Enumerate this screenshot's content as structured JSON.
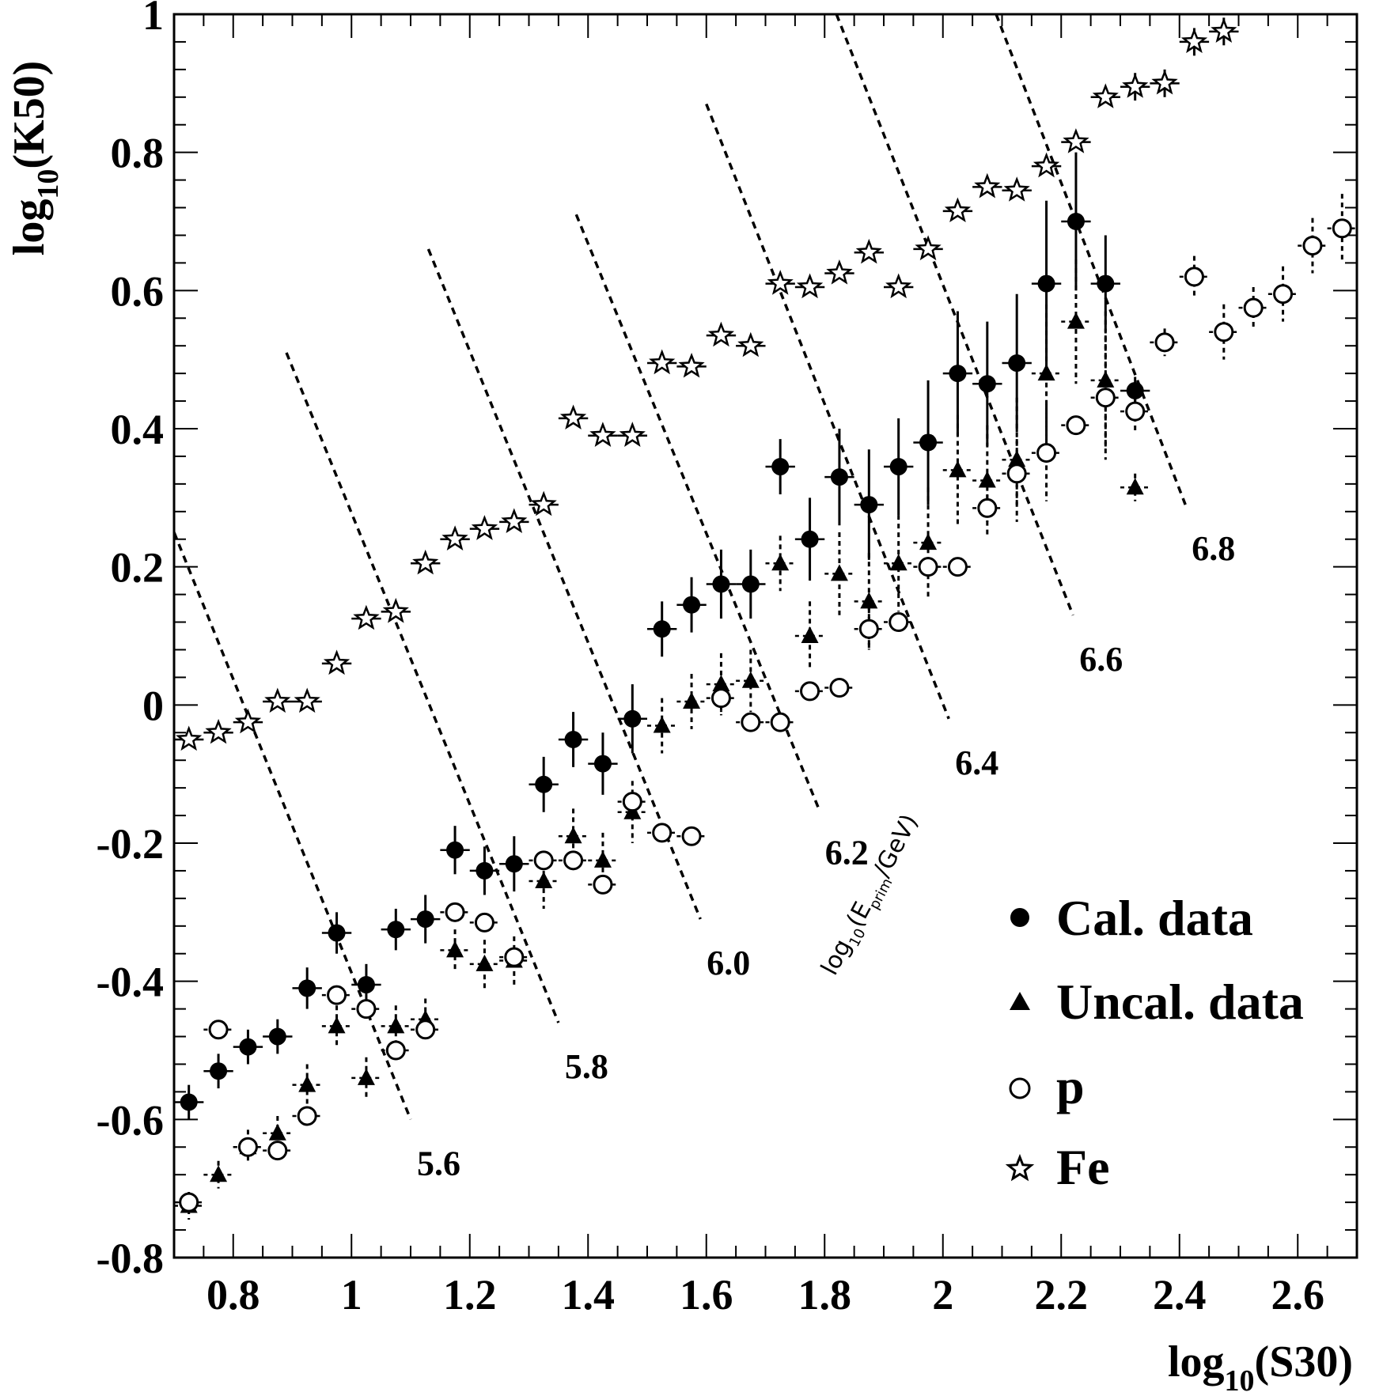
{
  "chart_data": {
    "type": "scatter",
    "xlabel": {
      "base": "log",
      "sub": "10",
      "rest": "(S30)"
    },
    "ylabel": {
      "base": "log",
      "sub": "10",
      "rest": "(K50)"
    },
    "xlim": [
      0.7,
      2.7
    ],
    "ylim": [
      -0.8,
      1.0
    ],
    "xticks": [
      0.8,
      1.0,
      1.2,
      1.4,
      1.6,
      1.8,
      2.0,
      2.2,
      2.4,
      2.6
    ],
    "xtick_labels": [
      "0.8",
      "1",
      "1.2",
      "1.4",
      "1.6",
      "1.8",
      "2",
      "2.2",
      "2.4",
      "2.6"
    ],
    "yticks": [
      -0.8,
      -0.6,
      -0.4,
      -0.2,
      0,
      0.2,
      0.4,
      0.6,
      0.8,
      1.0
    ],
    "ytick_labels": [
      "-0.8",
      "-0.6",
      "-0.4",
      "-0.2",
      "0",
      "0.2",
      "0.4",
      "0.6",
      "0.8",
      "1"
    ],
    "grid": false,
    "legend_position": "bottom-right",
    "series": [
      {
        "name": "Cal. data",
        "marker": "filled-circle",
        "x": [
          0.725,
          0.775,
          0.825,
          0.875,
          0.925,
          0.975,
          1.025,
          1.075,
          1.125,
          1.175,
          1.225,
          1.275,
          1.325,
          1.375,
          1.425,
          1.475,
          1.525,
          1.575,
          1.625,
          1.675,
          1.725,
          1.775,
          1.825,
          1.875,
          1.925,
          1.975,
          2.025,
          2.075,
          2.125,
          2.175,
          2.225,
          2.275,
          2.325
        ],
        "y": [
          -0.575,
          -0.53,
          -0.495,
          -0.48,
          -0.41,
          -0.33,
          -0.405,
          -0.325,
          -0.31,
          -0.21,
          -0.24,
          -0.23,
          -0.115,
          -0.05,
          -0.085,
          -0.02,
          0.11,
          0.145,
          0.175,
          0.175,
          0.345,
          0.24,
          0.33,
          0.29,
          0.345,
          0.38,
          0.48,
          0.465,
          0.495,
          0.61,
          0.7,
          0.61,
          0.455
        ],
        "yerr": [
          0.025,
          0.025,
          0.025,
          0.025,
          0.03,
          0.03,
          0.03,
          0.03,
          0.035,
          0.035,
          0.035,
          0.04,
          0.04,
          0.04,
          0.045,
          0.05,
          0.04,
          0.04,
          0.05,
          0.05,
          0.04,
          0.06,
          0.07,
          0.08,
          0.07,
          0.09,
          0.09,
          0.09,
          0.1,
          0.12,
          0.1,
          0.07,
          0.02
        ]
      },
      {
        "name": "Uncal. data",
        "marker": "filled-triangle",
        "x": [
          0.725,
          0.775,
          0.825,
          0.875,
          0.925,
          0.975,
          1.025,
          1.075,
          1.125,
          1.175,
          1.225,
          1.275,
          1.325,
          1.375,
          1.425,
          1.475,
          1.525,
          1.575,
          1.625,
          1.675,
          1.725,
          1.775,
          1.825,
          1.875,
          1.925,
          1.975,
          2.025,
          2.075,
          2.125,
          2.175,
          2.225,
          2.275,
          2.325
        ],
        "y": [
          -0.725,
          -0.68,
          -0.64,
          -0.62,
          -0.55,
          -0.465,
          -0.54,
          -0.465,
          -0.455,
          -0.355,
          -0.375,
          -0.37,
          -0.255,
          -0.19,
          -0.225,
          -0.155,
          -0.03,
          0.005,
          0.03,
          0.035,
          0.205,
          0.1,
          0.19,
          0.15,
          0.205,
          0.235,
          0.34,
          0.325,
          0.355,
          0.48,
          0.555,
          0.47,
          0.315
        ],
        "yerr": [
          0.02,
          0.02,
          0.025,
          0.025,
          0.03,
          0.03,
          0.03,
          0.03,
          0.03,
          0.03,
          0.035,
          0.035,
          0.04,
          0.04,
          0.04,
          0.045,
          0.04,
          0.04,
          0.045,
          0.045,
          0.04,
          0.05,
          0.06,
          0.07,
          0.07,
          0.08,
          0.08,
          0.08,
          0.09,
          0.1,
          0.09,
          0.1,
          0.02
        ]
      },
      {
        "name": "p",
        "marker": "open-circle",
        "x": [
          0.725,
          0.775,
          0.825,
          0.875,
          0.925,
          0.975,
          1.025,
          1.075,
          1.125,
          1.175,
          1.225,
          1.275,
          1.325,
          1.375,
          1.425,
          1.475,
          1.525,
          1.575,
          1.625,
          1.675,
          1.725,
          1.775,
          1.825,
          1.875,
          1.925,
          1.975,
          2.025,
          2.075,
          2.125,
          2.175,
          2.225,
          2.275,
          2.325,
          2.375,
          2.425,
          2.475,
          2.525,
          2.575,
          2.625,
          2.675
        ],
        "y": [
          -0.72,
          -0.47,
          -0.64,
          -0.645,
          -0.595,
          -0.42,
          -0.44,
          -0.5,
          -0.47,
          -0.3,
          -0.315,
          -0.365,
          -0.225,
          -0.225,
          -0.26,
          -0.14,
          -0.185,
          -0.19,
          0.01,
          -0.025,
          -0.025,
          0.02,
          0.025,
          0.11,
          0.12,
          0.2,
          0.2,
          0.285,
          0.335,
          0.365,
          0.405,
          0.445,
          0.425,
          0.525,
          0.62,
          0.54,
          0.575,
          0.595,
          0.665,
          0.69
        ],
        "yerr": [
          0,
          0,
          0,
          0,
          0,
          0,
          0,
          0,
          0,
          0,
          0,
          0,
          0,
          0,
          0,
          0,
          0,
          0,
          0.02,
          0,
          0,
          0,
          0,
          0.03,
          0,
          0,
          0,
          0.02,
          0.05,
          0.07,
          0,
          0.09,
          0.03,
          0.02,
          0.03,
          0.04,
          0.03,
          0.04,
          0.04,
          0.05
        ]
      },
      {
        "name": "Fe",
        "marker": "open-star",
        "x": [
          0.725,
          0.775,
          0.825,
          0.875,
          0.925,
          0.975,
          1.025,
          1.075,
          1.125,
          1.175,
          1.225,
          1.275,
          1.325,
          1.375,
          1.425,
          1.475,
          1.525,
          1.575,
          1.625,
          1.675,
          1.725,
          1.775,
          1.825,
          1.875,
          1.925,
          1.975,
          2.025,
          2.075,
          2.125,
          2.175,
          2.225,
          2.275,
          2.325,
          2.375,
          2.425,
          2.475
        ],
        "y": [
          -0.05,
          -0.04,
          -0.025,
          0.005,
          0.005,
          0.06,
          0.125,
          0.135,
          0.205,
          0.24,
          0.255,
          0.265,
          0.29,
          0.415,
          0.39,
          0.39,
          0.495,
          0.49,
          0.535,
          0.52,
          0.61,
          0.605,
          0.625,
          0.655,
          0.605,
          0.66,
          0.715,
          0.75,
          0.745,
          0.78,
          0.815,
          0.88,
          0.895,
          0.9,
          0.96,
          0.975
        ],
        "yerr": [
          0,
          0,
          0,
          0,
          0,
          0,
          0,
          0,
          0,
          0,
          0,
          0,
          0,
          0,
          0,
          0,
          0,
          0,
          0,
          0,
          0,
          0,
          0,
          0,
          0,
          0,
          0,
          0,
          0,
          0,
          0,
          0,
          0.02,
          0.02,
          0.02,
          0.02
        ]
      }
    ],
    "energy_lines": [
      {
        "label": "5.6",
        "x": [
          0.7,
          1.1
        ],
        "y": [
          0.25,
          -0.6
        ]
      },
      {
        "label": "5.8",
        "x": [
          0.89,
          1.35
        ],
        "y": [
          0.51,
          -0.46
        ]
      },
      {
        "label": "6.0",
        "x": [
          1.13,
          1.59
        ],
        "y": [
          0.66,
          -0.31
        ]
      },
      {
        "label": "6.2",
        "x": [
          1.38,
          1.79
        ],
        "y": [
          0.71,
          -0.15
        ]
      },
      {
        "label": "6.4",
        "x": [
          1.6,
          2.01
        ],
        "y": [
          0.87,
          -0.02
        ]
      },
      {
        "label": "6.6",
        "x": [
          1.82,
          2.22
        ],
        "y": [
          1.0,
          0.13
        ]
      },
      {
        "label": "6.8",
        "x": [
          2.09,
          2.41
        ],
        "y": [
          1.0,
          0.29
        ]
      }
    ],
    "energy_axis_title": {
      "base": "log",
      "sub": "10",
      "open": "(E",
      "sub2": "prim",
      "rest": "/GeV)"
    }
  }
}
